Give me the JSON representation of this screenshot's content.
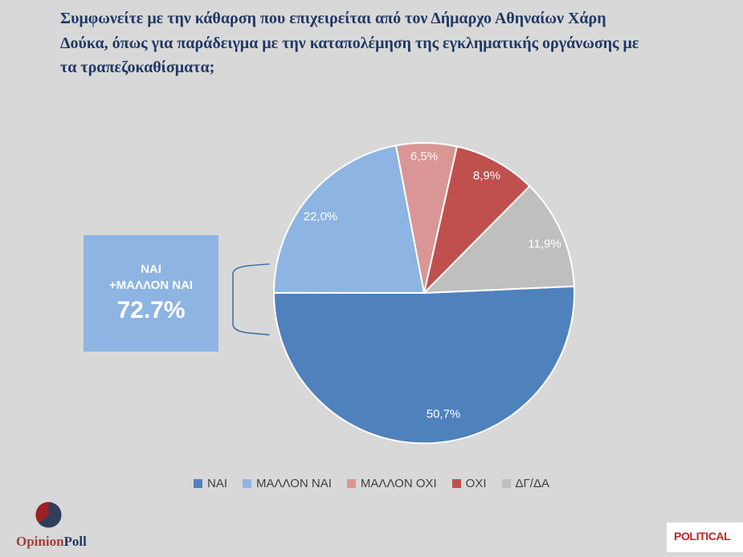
{
  "title": {
    "text": "Συμφωνείτε με την κάθαρση που επιχειρείται από τον Δήμαρχο Αθηναίων Χάρη Δούκα, όπως για παράδειγμα με την καταπολέμηση της εγκληματικής οργάνωσης με τα τραπεζοκαθίσματα;",
    "lines": [
      "Συμφωνείτε με την κάθαρση που επιχειρείται από τον Δήμαρχο Αθηναίων Χάρη",
      "Δούκα, όπως για παράδειγμα με την καταπολέμηση της εγκληματικής οργάνωσης με",
      "τα τραπεζοκαθίσματα;"
    ],
    "color": "#1F3864"
  },
  "chart_data": {
    "type": "pie",
    "title": "Συμφωνείτε με την κάθαρση που επιχειρείται από τον Δήμαρχο Αθηναίων Χάρη Δούκα, όπως για παράδειγμα με την καταπολέμηση της εγκληματικής οργάνωσης με τα τραπεζοκαθίσματα;",
    "start_angle_deg": 87.5,
    "direction": "clockwise",
    "legend_position": "bottom",
    "slices": [
      {
        "label": "ΝΑΙ",
        "value": 50.7,
        "display": "50,7%",
        "color": "#4F81BD"
      },
      {
        "label": "ΜΑΛΛΟΝ ΝΑΙ",
        "value": 22.0,
        "display": "22,0%",
        "color": "#8DB4E2"
      },
      {
        "label": "ΜΑΛΛΟΝ ΟΧΙ",
        "value": 6.5,
        "display": "6,5%",
        "color": "#D99694"
      },
      {
        "label": "ΟΧΙ",
        "value": 8.9,
        "display": "8,9%",
        "color": "#C0504D"
      },
      {
        "label": "ΔΓ/ΔΑ",
        "value": 11.9,
        "display": "11,9%",
        "color": "#BFBFBF"
      }
    ]
  },
  "callout": {
    "line1": "ΝΑΙ",
    "line2": "+ΜΑΛΛΟΝ ΝΑΙ",
    "value": "72.7%",
    "background_color": "#8DB4E2"
  },
  "footer": {
    "opinionpoll": {
      "word_part1": "Opinion",
      "word_part2": "Poll",
      "part1_color": "#A43D3B",
      "part2_color": "#1F3864",
      "circle_navy": "#303E5C",
      "circle_red": "#9E2025"
    },
    "political": {
      "label": "POLITICAL",
      "text_color": "#C32026"
    }
  }
}
